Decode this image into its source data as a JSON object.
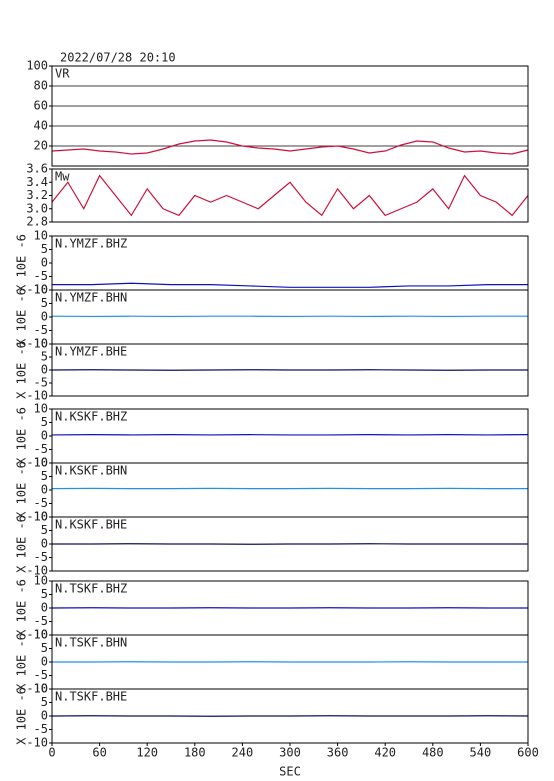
{
  "chart_data": [
    {
      "type": "line",
      "title": "2022/07/28 20:10",
      "label": "VR",
      "color": "#d0103a",
      "grid": true,
      "x": [
        0,
        20,
        40,
        60,
        80,
        100,
        120,
        140,
        160,
        180,
        200,
        220,
        240,
        260,
        280,
        300,
        320,
        340,
        360,
        380,
        400,
        420,
        440,
        460,
        480,
        500,
        520,
        540,
        560,
        580,
        600
      ],
      "values": [
        15,
        16,
        17,
        15,
        14,
        12,
        13,
        17,
        22,
        25,
        26,
        24,
        20,
        18,
        17,
        15,
        17,
        19,
        20,
        17,
        13,
        15,
        21,
        25,
        24,
        18,
        14,
        15,
        13,
        12,
        16
      ],
      "xlim": [
        0,
        600
      ],
      "ylim": [
        0,
        100
      ],
      "yticks": [
        20,
        40,
        60,
        80,
        100
      ]
    },
    {
      "type": "line",
      "label": "Mw",
      "color": "#d0103a",
      "grid": false,
      "x": [
        0,
        20,
        40,
        60,
        80,
        100,
        120,
        140,
        160,
        180,
        200,
        220,
        240,
        260,
        280,
        300,
        320,
        340,
        360,
        380,
        400,
        420,
        440,
        460,
        480,
        500,
        520,
        540,
        560,
        580,
        600
      ],
      "values": [
        3.1,
        3.4,
        3.0,
        3.5,
        3.2,
        2.9,
        3.3,
        3.0,
        2.9,
        3.2,
        3.1,
        3.2,
        3.1,
        3.0,
        3.2,
        3.4,
        3.1,
        2.9,
        3.3,
        3.0,
        3.2,
        2.9,
        3.0,
        3.1,
        3.3,
        3.0,
        3.5,
        3.2,
        3.1,
        2.9,
        3.2
      ],
      "xlim": [
        0,
        600
      ],
      "ylim": [
        2.8,
        3.6
      ],
      "yticks": [
        2.8,
        {
          "value": 3,
          "label": "3.0"
        },
        3.2,
        3.4,
        3.6
      ]
    },
    {
      "type": "line",
      "label": "N.YMZF.BHZ",
      "ylabel": "X 10E -6",
      "color": "#1010c0",
      "x": [
        0,
        50,
        100,
        150,
        200,
        250,
        300,
        350,
        400,
        450,
        500,
        550,
        600
      ],
      "values": [
        -8,
        -8,
        -7.5,
        -8,
        -8,
        -8.5,
        -9,
        -9,
        -9,
        -8.5,
        -8.5,
        -8,
        -8
      ],
      "xlim": [
        0,
        600
      ],
      "ylim": [
        -10,
        10
      ],
      "yticks": [
        -10,
        -5,
        0,
        5,
        10
      ]
    },
    {
      "type": "line",
      "label": "N.YMZF.BHN",
      "ylabel": "X 10E -6",
      "color": "#2090f0",
      "x": [
        0,
        50,
        100,
        150,
        200,
        250,
        300,
        350,
        400,
        450,
        500,
        550,
        600
      ],
      "values": [
        0.3,
        0.2,
        0.3,
        0.2,
        0.3,
        0.3,
        0.2,
        0.3,
        0.2,
        0.3,
        0.2,
        0.3,
        0.3
      ],
      "xlim": [
        0,
        600
      ],
      "ylim": [
        -10,
        10
      ],
      "yticks": [
        -10,
        -5,
        0,
        5,
        10
      ]
    },
    {
      "type": "line",
      "label": "N.YMZF.BHE",
      "ylabel": "X 10E -6",
      "color": "#101060",
      "x": [
        0,
        50,
        100,
        150,
        200,
        250,
        300,
        350,
        400,
        450,
        500,
        550,
        600
      ],
      "values": [
        0,
        0.1,
        0,
        -0.1,
        0,
        0.1,
        0,
        0,
        0.1,
        0,
        -0.1,
        0,
        0
      ],
      "xlim": [
        0,
        600
      ],
      "ylim": [
        -10,
        10
      ],
      "yticks": [
        -10,
        -5,
        0,
        5,
        10
      ]
    },
    {
      "type": "line",
      "label": "N.KSKF.BHZ",
      "ylabel": "X 10E -6",
      "color": "#1010c0",
      "x": [
        0,
        50,
        100,
        150,
        200,
        250,
        300,
        350,
        400,
        450,
        500,
        550,
        600
      ],
      "values": [
        0.4,
        0.5,
        0.4,
        0.5,
        0.4,
        0.5,
        0.4,
        0.4,
        0.5,
        0.4,
        0.5,
        0.4,
        0.5
      ],
      "xlim": [
        0,
        600
      ],
      "ylim": [
        -10,
        10
      ],
      "yticks": [
        -10,
        -5,
        0,
        5,
        10
      ]
    },
    {
      "type": "line",
      "label": "N.KSKF.BHN",
      "ylabel": "X 10E -6",
      "color": "#2090f0",
      "x": [
        0,
        50,
        100,
        150,
        200,
        250,
        300,
        350,
        400,
        450,
        500,
        550,
        600
      ],
      "values": [
        0.5,
        0.6,
        0.5,
        0.5,
        0.6,
        0.5,
        0.5,
        0.6,
        0.5,
        0.5,
        0.6,
        0.5,
        0.5
      ],
      "xlim": [
        0,
        600
      ],
      "ylim": [
        -10,
        10
      ],
      "yticks": [
        -10,
        -5,
        0,
        5,
        10
      ]
    },
    {
      "type": "line",
      "label": "N.KSKF.BHE",
      "ylabel": "X 10E -6",
      "color": "#101060",
      "x": [
        0,
        50,
        100,
        150,
        200,
        250,
        300,
        350,
        400,
        450,
        500,
        550,
        600
      ],
      "values": [
        0,
        0,
        0.1,
        0,
        0,
        -0.1,
        0,
        0,
        0.1,
        0,
        0,
        0,
        0
      ],
      "xlim": [
        0,
        600
      ],
      "ylim": [
        -10,
        10
      ],
      "yticks": [
        -10,
        -5,
        0,
        5,
        10
      ]
    },
    {
      "type": "line",
      "label": "N.TSKF.BHZ",
      "ylabel": "X 10E -6",
      "color": "#1010c0",
      "x": [
        0,
        50,
        100,
        150,
        200,
        250,
        300,
        350,
        400,
        450,
        500,
        550,
        600
      ],
      "values": [
        0,
        0.1,
        0,
        0,
        0.1,
        0,
        0,
        0.1,
        0,
        0,
        0.1,
        0,
        0
      ],
      "xlim": [
        0,
        600
      ],
      "ylim": [
        -10,
        10
      ],
      "yticks": [
        -10,
        -5,
        0,
        5,
        10
      ]
    },
    {
      "type": "line",
      "label": "N.TSKF.BHN",
      "ylabel": "X 10E -6",
      "color": "#2090f0",
      "x": [
        0,
        50,
        100,
        150,
        200,
        250,
        300,
        350,
        400,
        450,
        500,
        550,
        600
      ],
      "values": [
        0,
        0,
        0.1,
        0,
        0,
        0.1,
        0,
        0,
        0,
        0.1,
        0,
        0,
        0
      ],
      "xlim": [
        0,
        600
      ],
      "ylim": [
        -10,
        10
      ],
      "yticks": [
        -10,
        -5,
        0,
        5,
        10
      ]
    },
    {
      "type": "line",
      "label": "N.TSKF.BHE",
      "ylabel": "X 10E -6",
      "xlabel": "SEC",
      "color": "#101060",
      "x": [
        0,
        50,
        100,
        150,
        200,
        250,
        300,
        350,
        400,
        450,
        500,
        550,
        600
      ],
      "values": [
        0,
        0.1,
        0,
        0,
        -0.1,
        0,
        0,
        0.1,
        0,
        0,
        0,
        0.1,
        0
      ],
      "xlim": [
        0,
        600
      ],
      "ylim": [
        -10,
        10
      ],
      "yticks": [
        -10,
        -5,
        0,
        5,
        10
      ],
      "xticks": [
        0,
        60,
        120,
        180,
        240,
        300,
        360,
        420,
        480,
        540,
        600
      ]
    }
  ]
}
